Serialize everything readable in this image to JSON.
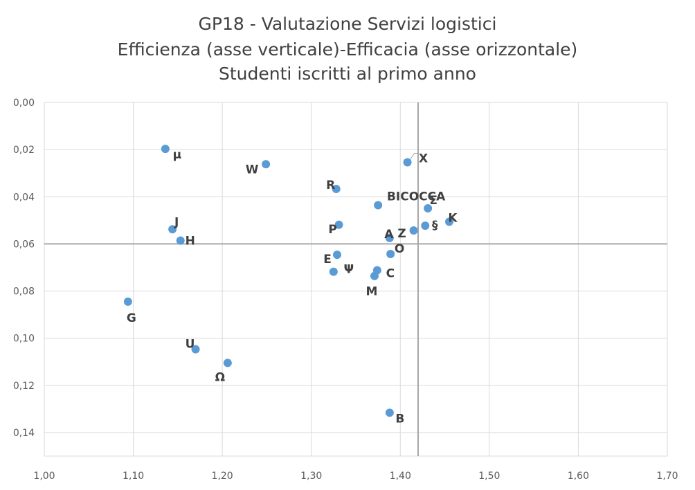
{
  "chart_data": {
    "type": "scatter",
    "title_lines": [
      "GP18 - Valutazione Servizi logistici",
      "Efficienza (asse verticale)-Efficacia (asse orizzontale)",
      "Studenti iscritti al primo anno"
    ],
    "xlabel": "",
    "ylabel": "",
    "xlim": [
      1.0,
      1.7
    ],
    "ylim": [
      0.0,
      0.15
    ],
    "y_reversed": true,
    "x_ticks": [
      "1,00",
      "1,10",
      "1,20",
      "1,30",
      "1,40",
      "1,50",
      "1,60",
      "1,70"
    ],
    "y_ticks": [
      "0,00",
      "0,02",
      "0,04",
      "0,06",
      "0,08",
      "0,10",
      "0,12",
      "0,14"
    ],
    "grid": true,
    "reference_lines": {
      "x": 1.42,
      "y": 0.06
    },
    "point_color": "#5b9bd5",
    "points": [
      {
        "label": "µ",
        "x": 1.136,
        "y": 0.0197
      },
      {
        "label": "W",
        "x": 1.249,
        "y": 0.0262
      },
      {
        "label": "X",
        "x": 1.408,
        "y": 0.0254
      },
      {
        "label": "R",
        "x": 1.328,
        "y": 0.0367
      },
      {
        "label": "BICOCCA",
        "x": 1.375,
        "y": 0.0436
      },
      {
        "label": "Σ",
        "x": 1.431,
        "y": 0.0449
      },
      {
        "label": "K",
        "x": 1.455,
        "y": 0.0506
      },
      {
        "label": "§",
        "x": 1.428,
        "y": 0.0523
      },
      {
        "label": "Z",
        "x": 1.415,
        "y": 0.0543
      },
      {
        "label": "P",
        "x": 1.331,
        "y": 0.0519
      },
      {
        "label": "J",
        "x": 1.144,
        "y": 0.0538
      },
      {
        "label": "H",
        "x": 1.153,
        "y": 0.0586
      },
      {
        "label": "A",
        "x": 1.388,
        "y": 0.0575
      },
      {
        "label": "O",
        "x": 1.389,
        "y": 0.0643
      },
      {
        "label": "E",
        "x": 1.329,
        "y": 0.0646
      },
      {
        "label": "Ψ",
        "x": 1.325,
        "y": 0.0718
      },
      {
        "label": "C",
        "x": 1.374,
        "y": 0.0712
      },
      {
        "label": "M",
        "x": 1.371,
        "y": 0.0736
      },
      {
        "label": "G",
        "x": 1.094,
        "y": 0.0845
      },
      {
        "label": "U",
        "x": 1.17,
        "y": 0.1047
      },
      {
        "label": "Ω",
        "x": 1.206,
        "y": 0.1105
      },
      {
        "label": "B",
        "x": 1.388,
        "y": 0.1316
      }
    ]
  }
}
